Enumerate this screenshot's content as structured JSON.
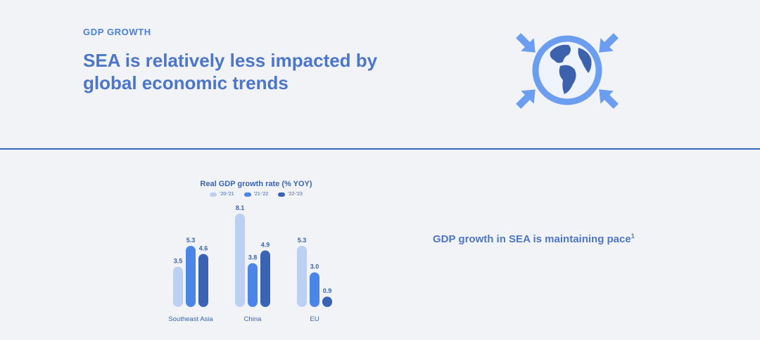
{
  "header": {
    "eyebrow": "GDP GROWTH",
    "headline": "SEA is relatively less impacted by global economic trends",
    "hero_icon": "globe-with-inward-arrows-icon"
  },
  "caption": {
    "text": "GDP growth in SEA is maintaining pace",
    "footnote": "1"
  },
  "colors": {
    "text": "#3a64b8",
    "series": [
      "#bcd0f3",
      "#4a86e8",
      "#3a63b3"
    ]
  },
  "chart_data": {
    "type": "bar",
    "title": "Real GDP growth rate (% YOY)",
    "categories": [
      "Southeast Asia",
      "China",
      "EU"
    ],
    "series": [
      {
        "name": "'20-'21",
        "values": [
          3.5,
          8.1,
          5.3
        ]
      },
      {
        "name": "'21-'22",
        "values": [
          5.3,
          3.8,
          3.0
        ]
      },
      {
        "name": "'22-'23",
        "values": [
          4.6,
          4.9,
          0.9
        ]
      }
    ],
    "ylim": [
      0,
      8.1
    ],
    "grid": false,
    "legend": "top-center",
    "xlabel": "",
    "ylabel": ""
  }
}
